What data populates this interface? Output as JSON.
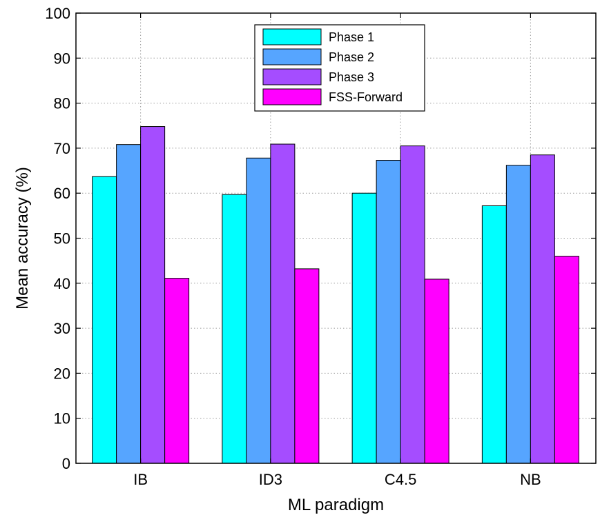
{
  "chart_data": {
    "type": "bar",
    "xlabel": "ML paradigm",
    "ylabel": "Mean accuracy (%)",
    "categories": [
      "IB",
      "ID3",
      "C4.5",
      "NB"
    ],
    "ylim": [
      0,
      100
    ],
    "yticks": [
      0,
      10,
      20,
      30,
      40,
      50,
      60,
      70,
      80,
      90,
      100
    ],
    "grid": true,
    "legend_position": "top-center",
    "series": [
      {
        "name": "Phase 1",
        "color": "#00ffff",
        "values": [
          63.7,
          59.7,
          60.0,
          57.2
        ]
      },
      {
        "name": "Phase 2",
        "color": "#56a5ff",
        "values": [
          70.8,
          67.8,
          67.3,
          66.2
        ]
      },
      {
        "name": "Phase 3",
        "color": "#a54dff",
        "values": [
          74.8,
          70.9,
          70.5,
          68.5
        ]
      },
      {
        "name": "FSS-Forward",
        "color": "#ff00ff",
        "values": [
          41.1,
          43.2,
          40.9,
          46.0
        ]
      }
    ]
  }
}
